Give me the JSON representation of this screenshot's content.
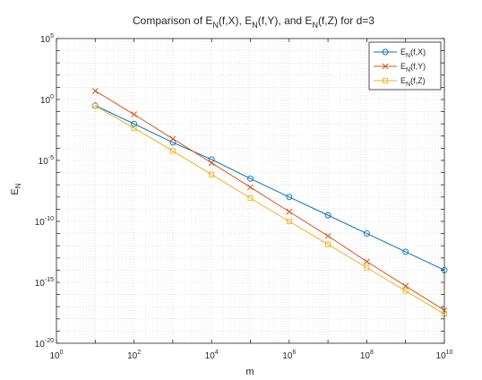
{
  "chart_data": {
    "type": "line",
    "title": {
      "parts": [
        {
          "t": "Comparison of E"
        },
        {
          "t": "N",
          "sub": true
        },
        {
          "t": "(f,X), E"
        },
        {
          "t": "N",
          "sub": true
        },
        {
          "t": "(f,Y), and E"
        },
        {
          "t": "N",
          "sub": true
        },
        {
          "t": "(f,Z) for d=3"
        }
      ]
    },
    "xlabel": "m",
    "ylabel": {
      "base": "E",
      "sub": "N"
    },
    "x_scale": "log",
    "y_scale": "log",
    "xlim": [
      1,
      10000000000
    ],
    "ylim": [
      1e-20,
      100000
    ],
    "grid": true,
    "minor_grid": true,
    "legend_position": "top-right",
    "x_ticks": [
      {
        "value": 1,
        "base": "10",
        "exp": "0"
      },
      {
        "value": 100,
        "base": "10",
        "exp": "2"
      },
      {
        "value": 10000,
        "base": "10",
        "exp": "4"
      },
      {
        "value": 1000000,
        "base": "10",
        "exp": "6"
      },
      {
        "value": 100000000,
        "base": "10",
        "exp": "8"
      },
      {
        "value": 10000000000,
        "base": "10",
        "exp": "10"
      }
    ],
    "y_ticks": [
      {
        "value": 1e-20,
        "base": "10",
        "exp": "-20"
      },
      {
        "value": 1e-15,
        "base": "10",
        "exp": "-15"
      },
      {
        "value": 1e-10,
        "base": "10",
        "exp": "-10"
      },
      {
        "value": 1e-05,
        "base": "10",
        "exp": "-5"
      },
      {
        "value": 1,
        "base": "10",
        "exp": "0"
      },
      {
        "value": 100000,
        "base": "10",
        "exp": "5"
      }
    ],
    "x": [
      10,
      100,
      1000,
      10000,
      100000,
      1000000,
      10000000,
      100000000,
      1000000000,
      10000000000
    ],
    "series": [
      {
        "name": "E_N(f,X)",
        "legend": {
          "base": "E",
          "sub": "N",
          "rest": "(f,X)"
        },
        "color": "#0072BD",
        "marker": "circle",
        "values": [
          0.32,
          0.01,
          0.0003,
          1.2e-05,
          3.2e-07,
          1e-08,
          3.2e-10,
          1e-11,
          3.2e-13,
          1e-14
        ]
      },
      {
        "name": "E_N(f,Y)",
        "legend": {
          "base": "E",
          "sub": "N",
          "rest": "(f,Y)"
        },
        "color": "#D95319",
        "marker": "x",
        "values": [
          5,
          0.06,
          0.0006,
          6.3e-06,
          6.3e-08,
          6.3e-10,
          6.3e-12,
          5e-14,
          5e-16,
          5e-18
        ]
      },
      {
        "name": "E_N(f,Z)",
        "legend": {
          "base": "E",
          "sub": "N",
          "rest": "(f,Z)"
        },
        "color": "#EDB120",
        "marker": "square",
        "values": [
          0.3,
          0.0045,
          6e-05,
          7e-07,
          8e-09,
          1e-10,
          1.3e-12,
          1.6e-14,
          2e-16,
          2.5e-18
        ]
      }
    ]
  }
}
